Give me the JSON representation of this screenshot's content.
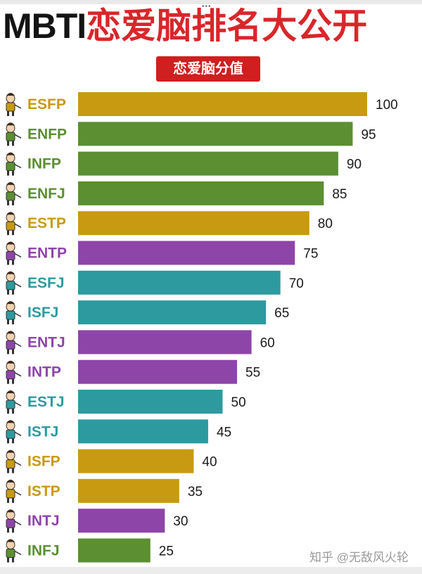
{
  "header": {
    "title_latin": "MBTI",
    "title_cjk": "恋爱脑排名大公开",
    "subtitle": "恋爱脑分值",
    "menu_dots": "•••"
  },
  "watermark": "知乎 @无敌风火轮",
  "colors": {
    "gold": "#c89a12",
    "green": "#5b8f32",
    "purple": "#8e45a8",
    "teal": "#2d9aa0",
    "title_red": "#d9262a",
    "subtitle_bg": "#cf1f1f"
  },
  "chart_data": {
    "type": "bar",
    "orientation": "horizontal",
    "title": "MBTI恋爱脑排名大公开",
    "subtitle": "恋爱脑分值",
    "categories": [
      "ESFP",
      "ENFP",
      "INFP",
      "ENFJ",
      "ESTP",
      "ENTP",
      "ESFJ",
      "ISFJ",
      "ENTJ",
      "INTP",
      "ESTJ",
      "ISTJ",
      "ISFP",
      "ISTP",
      "INTJ",
      "INFJ"
    ],
    "values": [
      100,
      95,
      90,
      85,
      80,
      75,
      70,
      65,
      60,
      55,
      50,
      45,
      40,
      35,
      30,
      25
    ],
    "bar_groups": [
      "gold",
      "green",
      "green",
      "green",
      "gold",
      "purple",
      "teal",
      "teal",
      "purple",
      "purple",
      "teal",
      "teal",
      "gold",
      "gold",
      "purple",
      "green"
    ],
    "xlim": [
      0,
      100
    ],
    "data_labels": true,
    "grid": false,
    "legend": "none"
  }
}
